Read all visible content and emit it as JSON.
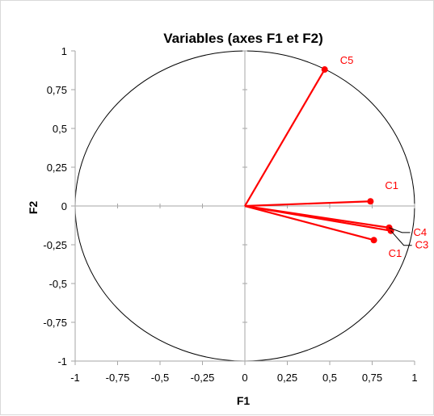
{
  "chart_data": {
    "type": "scatter",
    "title": "Variables (axes F1 et F2)",
    "xlabel": "F1",
    "ylabel": "F2",
    "xlim": [
      -1,
      1
    ],
    "ylim": [
      -1,
      1
    ],
    "x_ticks": [
      "-1",
      "-0,75",
      "-0,5",
      "-0,25",
      "0",
      "0,25",
      "0,5",
      "0,75",
      "1"
    ],
    "y_ticks": [
      "1",
      "0,75",
      "0,5",
      "0,25",
      "0",
      "-0,25",
      "-0,5",
      "-0,75",
      "-1"
    ],
    "grid": false,
    "unit_circle": true,
    "series_color": "#ff0000",
    "points": [
      {
        "label": "C5",
        "x": 0.47,
        "y": 0.88
      },
      {
        "label": "C1",
        "x": 0.74,
        "y": 0.03
      },
      {
        "label": "C4",
        "x": 0.85,
        "y": -0.14
      },
      {
        "label": "C3",
        "x": 0.86,
        "y": -0.16
      },
      {
        "label": "C1",
        "x": 0.76,
        "y": -0.22
      }
    ]
  }
}
